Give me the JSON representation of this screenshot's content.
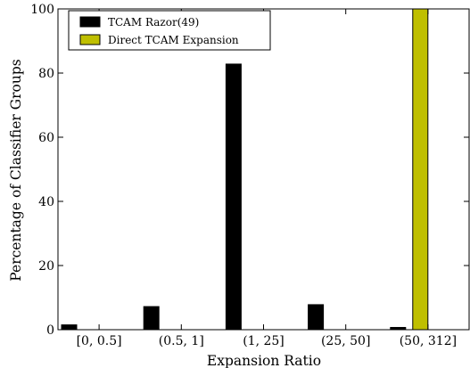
{
  "chart_data": {
    "type": "bar",
    "title": "",
    "xlabel": "Expansion Ratio",
    "ylabel": "Percentage of Classifier Groups",
    "ylim": [
      0,
      100
    ],
    "yticks": [
      0,
      20,
      40,
      60,
      80,
      100
    ],
    "ytick_labels": [
      "0",
      "20",
      "40",
      "60",
      "80",
      "100"
    ],
    "categories": [
      "[0, 0.5]",
      "(0.5, 1]",
      "(1, 25]",
      "(25, 50]",
      "(50,  312]"
    ],
    "series": [
      {
        "name": "TCAM Razor(49)",
        "color": "#000000",
        "values": [
          1.5,
          7.2,
          82.8,
          7.8,
          0.7
        ]
      },
      {
        "name": "Direct TCAM Expansion",
        "color": "#bfbf00",
        "values": [
          0,
          0,
          0,
          0,
          100
        ]
      }
    ],
    "legend": "top-left",
    "grid": false
  }
}
